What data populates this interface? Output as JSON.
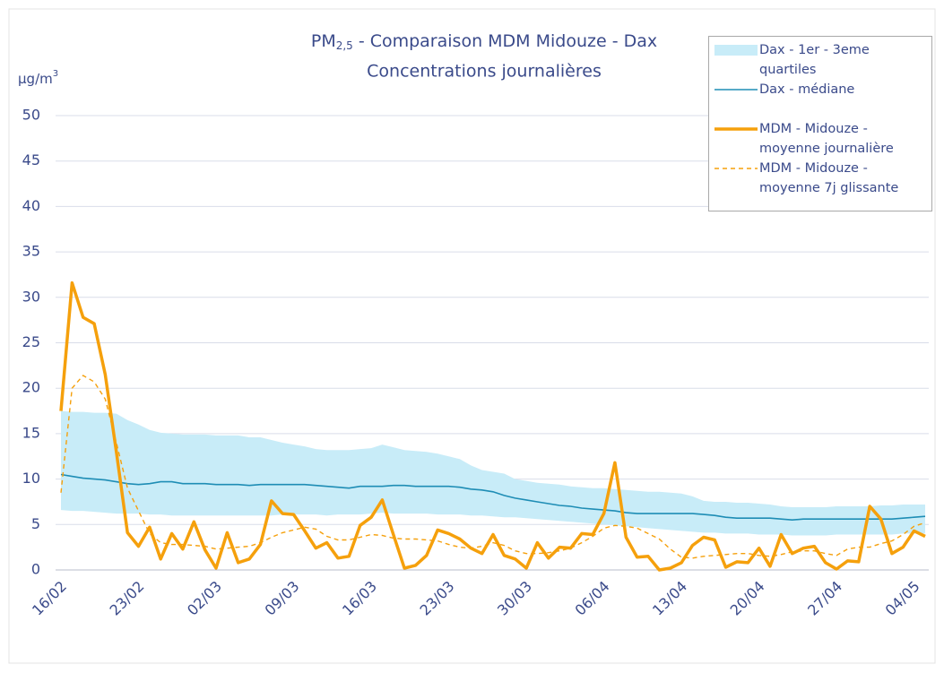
{
  "chart_data": {
    "type": "line",
    "title": {
      "text": "PM",
      "subscript": "2,5",
      "rest": "- Comparaison MDM Midouze - Dax"
    },
    "subtitle": "Concentrations journalières",
    "y_label": {
      "text": "µg/m",
      "superscript": "3"
    },
    "categories": [
      "16/02",
      null,
      null,
      null,
      null,
      null,
      null,
      "23/02",
      null,
      null,
      null,
      null,
      null,
      null,
      "02/03",
      null,
      null,
      null,
      null,
      null,
      null,
      "09/03",
      null,
      null,
      null,
      null,
      null,
      null,
      "16/03",
      null,
      null,
      null,
      null,
      null,
      null,
      "23/03",
      null,
      null,
      null,
      null,
      null,
      null,
      "30/03",
      null,
      null,
      null,
      null,
      null,
      null,
      "06/04",
      null,
      null,
      null,
      null,
      null,
      null,
      "13/04",
      null,
      null,
      null,
      null,
      null,
      null,
      "20/04",
      null,
      null,
      null,
      null,
      null,
      null,
      "27/04",
      null,
      null,
      null,
      null,
      null,
      null,
      "04/05",
      null
    ],
    "ylim": [
      0,
      50
    ],
    "yticks": [
      0,
      5,
      10,
      15,
      20,
      25,
      30,
      35,
      40,
      45,
      50
    ],
    "grid": true,
    "legend": "top-right",
    "series": [
      {
        "name": "Dax - 1er - 3eme quartiles",
        "style": "band",
        "color": "#c8ecf8",
        "low": [
          6.6,
          6.5,
          6.5,
          6.4,
          6.3,
          6.2,
          6.2,
          6.2,
          6.1,
          6.1,
          6.0,
          6.0,
          6.0,
          6.0,
          6.0,
          6.0,
          6.0,
          6.0,
          6.0,
          6.0,
          6.1,
          6.1,
          6.1,
          6.1,
          6.0,
          6.1,
          6.1,
          6.1,
          6.2,
          6.3,
          6.2,
          6.2,
          6.2,
          6.2,
          6.1,
          6.1,
          6.1,
          6.0,
          6.0,
          5.9,
          5.8,
          5.8,
          5.7,
          5.6,
          5.5,
          5.4,
          5.3,
          5.2,
          5.1,
          5.0,
          4.9,
          4.8,
          4.7,
          4.6,
          4.5,
          4.4,
          4.3,
          4.2,
          4.1,
          4.1,
          4.0,
          4.0,
          4.0,
          3.9,
          3.9,
          3.9,
          3.8,
          3.8,
          3.8,
          3.8,
          3.9,
          3.9,
          3.9,
          3.9,
          3.9,
          3.9,
          4.0,
          4.0,
          4.0
        ],
        "high": [
          17.5,
          17.4,
          17.4,
          17.3,
          17.3,
          17.2,
          16.5,
          16.0,
          15.4,
          15.1,
          15.0,
          14.9,
          14.9,
          14.9,
          14.8,
          14.8,
          14.8,
          14.6,
          14.6,
          14.3,
          14.0,
          13.8,
          13.6,
          13.3,
          13.2,
          13.2,
          13.2,
          13.3,
          13.4,
          13.8,
          13.5,
          13.2,
          13.1,
          13.0,
          12.8,
          12.5,
          12.2,
          11.5,
          11.0,
          10.8,
          10.6,
          10.0,
          9.8,
          9.6,
          9.5,
          9.4,
          9.2,
          9.1,
          9.0,
          9.0,
          8.9,
          8.8,
          8.7,
          8.6,
          8.6,
          8.5,
          8.4,
          8.1,
          7.6,
          7.5,
          7.5,
          7.4,
          7.4,
          7.3,
          7.2,
          7.0,
          6.9,
          6.9,
          6.9,
          6.9,
          7.0,
          7.0,
          7.0,
          7.0,
          7.1,
          7.1,
          7.2,
          7.2,
          7.2
        ]
      },
      {
        "name": "Dax - médiane",
        "style": "line",
        "color": "#1e8db5",
        "values": [
          10.5,
          10.3,
          10.1,
          10.0,
          9.9,
          9.7,
          9.5,
          9.4,
          9.5,
          9.7,
          9.7,
          9.5,
          9.5,
          9.5,
          9.4,
          9.4,
          9.4,
          9.3,
          9.4,
          9.4,
          9.4,
          9.4,
          9.4,
          9.3,
          9.2,
          9.1,
          9.0,
          9.2,
          9.2,
          9.2,
          9.3,
          9.3,
          9.2,
          9.2,
          9.2,
          9.2,
          9.1,
          8.9,
          8.8,
          8.6,
          8.2,
          7.9,
          7.7,
          7.5,
          7.3,
          7.1,
          7.0,
          6.8,
          6.7,
          6.6,
          6.5,
          6.3,
          6.2,
          6.2,
          6.2,
          6.2,
          6.2,
          6.2,
          6.1,
          6.0,
          5.8,
          5.7,
          5.7,
          5.7,
          5.7,
          5.6,
          5.5,
          5.6,
          5.6,
          5.6,
          5.6,
          5.6,
          5.6,
          5.6,
          5.6,
          5.6,
          5.7,
          5.8,
          5.9
        ]
      },
      {
        "name": "MDM - Midouze - moyenne journalière",
        "style": "thick",
        "color": "#f5a00c",
        "values": [
          17.5,
          31.6,
          27.8,
          27.1,
          21.5,
          13,
          4.1,
          2.6,
          4.7,
          1.2,
          4.0,
          2.3,
          5.3,
          2.2,
          0.2,
          4.1,
          0.8,
          1.2,
          2.8,
          7.6,
          6.2,
          6.1,
          4.3,
          2.4,
          3.0,
          1.3,
          1.5,
          4.9,
          5.8,
          7.7,
          3.9,
          0.2,
          0.5,
          1.6,
          4.4,
          4.0,
          3.4,
          2.4,
          1.8,
          3.9,
          1.6,
          1.2,
          0.2,
          3.0,
          1.3,
          2.5,
          2.4,
          4.0,
          3.9,
          6.2,
          11.8,
          3.6,
          1.4,
          1.5,
          0,
          0.2,
          0.8,
          2.7,
          3.6,
          3.3,
          0.3,
          0.9,
          0.8,
          2.4,
          0.4,
          3.9,
          1.8,
          2.4,
          2.6,
          0.8,
          0.1,
          1.0,
          0.9,
          7.0,
          5.6,
          1.8,
          2.5,
          4.3,
          3.7
        ]
      },
      {
        "name": "MDM - Midouze - moyenne 7j glissante",
        "style": "dashed",
        "color": "#f5a00c",
        "values": [
          8.5,
          20,
          21.4,
          20.7,
          18.8,
          14,
          9,
          6.5,
          4.0,
          3.0,
          2.8,
          2.8,
          2.7,
          2.6,
          2.3,
          2.4,
          2.5,
          2.6,
          3.0,
          3.6,
          4.1,
          4.4,
          4.7,
          4.5,
          3.7,
          3.3,
          3.3,
          3.6,
          3.9,
          3.8,
          3.5,
          3.4,
          3.4,
          3.3,
          3.2,
          2.8,
          2.5,
          2.4,
          2.6,
          3.0,
          2.7,
          2.1,
          1.8,
          1.8,
          1.9,
          2.1,
          2.4,
          3.0,
          3.7,
          4.6,
          4.9,
          4.8,
          4.6,
          4.0,
          3.4,
          2.3,
          1.4,
          1.3,
          1.5,
          1.6,
          1.7,
          1.8,
          1.8,
          1.6,
          1.5,
          1.7,
          2.0,
          2.1,
          2.1,
          1.8,
          1.6,
          2.3,
          2.5,
          2.5,
          2.9,
          3.2,
          3.9,
          4.8,
          5.2
        ]
      }
    ]
  }
}
